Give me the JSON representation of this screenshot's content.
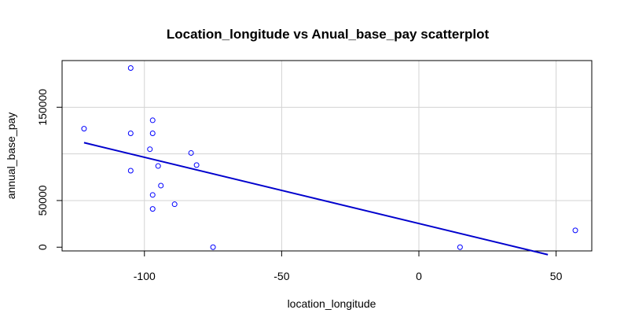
{
  "chart_data": {
    "type": "scatter",
    "title": "Location_longitude vs Anual_base_pay scatterplot",
    "xlabel": "location_longitude",
    "ylabel": "annual_base_pay",
    "xlim": [
      -130,
      63
    ],
    "ylim": [
      -4000,
      200000
    ],
    "xticks": [
      -100,
      -50,
      0,
      50
    ],
    "xtick_labels": [
      "-100",
      "-50",
      "0",
      "50"
    ],
    "yticks": [
      0,
      50000,
      150000
    ],
    "ytick_labels": [
      "0",
      "50000",
      "150000"
    ],
    "grid": true,
    "grid_x": [
      -100,
      -50,
      0,
      50
    ],
    "grid_y": [
      50000,
      100000,
      150000
    ],
    "point_color": "#0000ff",
    "line_color": "#0000cd",
    "points": [
      {
        "x": -105,
        "y": 192000
      },
      {
        "x": -122,
        "y": 127000
      },
      {
        "x": -97,
        "y": 136000
      },
      {
        "x": -105,
        "y": 122000
      },
      {
        "x": -97,
        "y": 122000
      },
      {
        "x": -98,
        "y": 105000
      },
      {
        "x": -83,
        "y": 101000
      },
      {
        "x": -95,
        "y": 87000
      },
      {
        "x": -81,
        "y": 88000
      },
      {
        "x": -105,
        "y": 82000
      },
      {
        "x": -94,
        "y": 66000
      },
      {
        "x": -97,
        "y": 56000
      },
      {
        "x": -89,
        "y": 46000
      },
      {
        "x": -97,
        "y": 41000
      },
      {
        "x": -75,
        "y": 0
      },
      {
        "x": 15,
        "y": 0
      },
      {
        "x": 57,
        "y": 18000
      }
    ],
    "regression_line": {
      "x": [
        -122,
        47
      ],
      "y": [
        112000,
        -8000
      ]
    }
  }
}
